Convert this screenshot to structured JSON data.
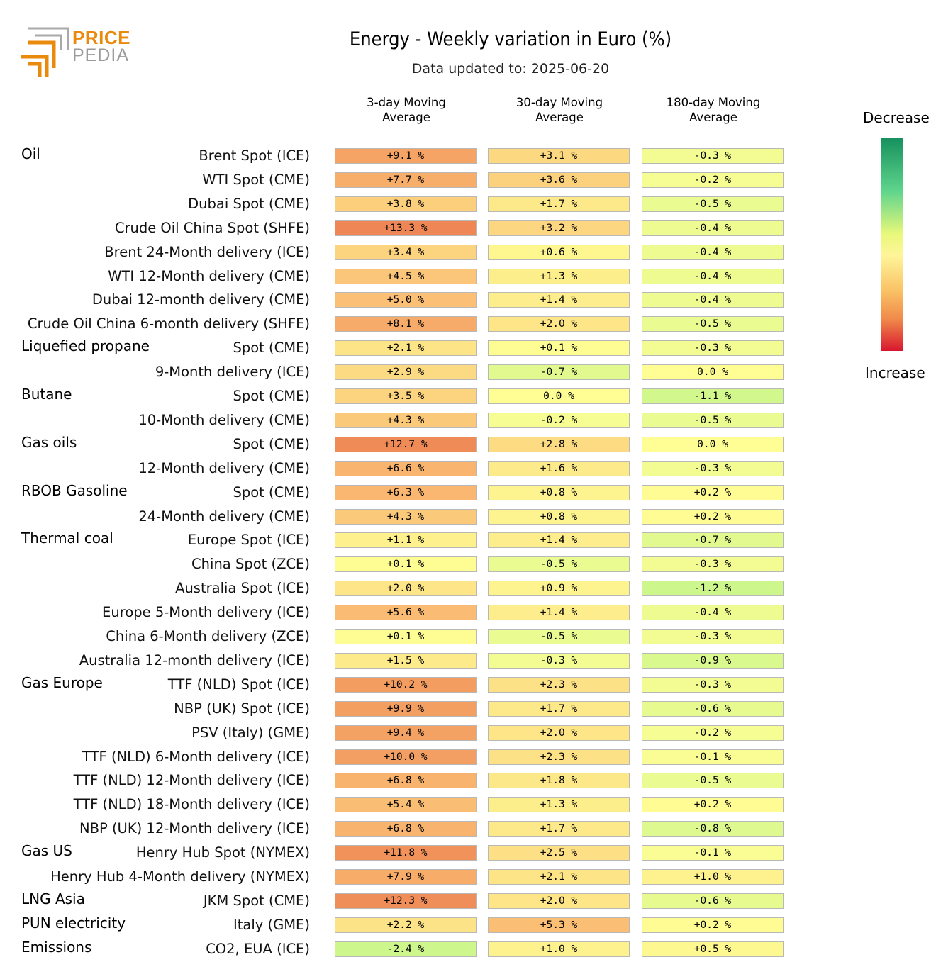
{
  "logo": {
    "line1": "PRICE",
    "line2": "PEDIA"
  },
  "title": "Energy - Weekly variation in Euro (%)",
  "subtitle": "Data updated to: 2025-06-20",
  "legend": {
    "top": "Decrease",
    "bottom": "Increase"
  },
  "chart_data": {
    "type": "table",
    "title": "Energy - Weekly variation in Euro (%)",
    "columns": [
      "3-day Moving Average",
      "30-day Moving Average",
      "180-day Moving Average"
    ],
    "column_lines": [
      [
        "3-day Moving",
        "Average"
      ],
      [
        "30-day Moving",
        "Average"
      ],
      [
        "180-day Moving",
        "Average"
      ]
    ],
    "groups": [
      {
        "name": "Oil",
        "rows": [
          {
            "label": "Brent Spot (ICE)",
            "values": [
              9.1,
              3.1,
              -0.3
            ]
          },
          {
            "label": "WTI Spot (CME)",
            "values": [
              7.7,
              3.6,
              -0.2
            ]
          },
          {
            "label": "Dubai Spot (CME)",
            "values": [
              3.8,
              1.7,
              -0.5
            ]
          },
          {
            "label": "Crude Oil China Spot (SHFE)",
            "values": [
              13.3,
              3.2,
              -0.4
            ]
          },
          {
            "label": "Brent 24-Month delivery (ICE)",
            "values": [
              3.4,
              0.6,
              -0.4
            ]
          },
          {
            "label": "WTI 12-Month delivery (CME)",
            "values": [
              4.5,
              1.3,
              -0.4
            ]
          },
          {
            "label": "Dubai 12-month delivery (CME)",
            "values": [
              5.0,
              1.4,
              -0.4
            ]
          },
          {
            "label": "Crude Oil China 6-month delivery (SHFE)",
            "values": [
              8.1,
              2.0,
              -0.5
            ]
          }
        ]
      },
      {
        "name": "Liquefied propane",
        "rows": [
          {
            "label": "Spot (CME)",
            "values": [
              2.1,
              0.1,
              -0.3
            ]
          },
          {
            "label": "9-Month delivery (ICE)",
            "values": [
              2.9,
              -0.7,
              0.0
            ]
          }
        ]
      },
      {
        "name": "Butane",
        "rows": [
          {
            "label": "Spot (CME)",
            "values": [
              3.5,
              0.0,
              -1.1
            ]
          },
          {
            "label": "10-Month delivery (CME)",
            "values": [
              4.3,
              -0.2,
              -0.5
            ]
          }
        ]
      },
      {
        "name": "Gas oils",
        "rows": [
          {
            "label": "Spot (CME)",
            "values": [
              12.7,
              2.8,
              0.0
            ]
          },
          {
            "label": "12-Month delivery (CME)",
            "values": [
              6.6,
              1.6,
              -0.3
            ]
          }
        ]
      },
      {
        "name": "RBOB Gasoline",
        "rows": [
          {
            "label": "Spot (CME)",
            "values": [
              6.3,
              0.8,
              0.2
            ]
          },
          {
            "label": "24-Month delivery (CME)",
            "values": [
              4.3,
              0.8,
              0.2
            ]
          }
        ]
      },
      {
        "name": "Thermal coal",
        "rows": [
          {
            "label": "Europe Spot (ICE)",
            "values": [
              1.1,
              1.4,
              -0.7
            ]
          },
          {
            "label": "China Spot (ZCE)",
            "values": [
              0.1,
              -0.5,
              -0.3
            ]
          },
          {
            "label": "Australia Spot (ICE)",
            "values": [
              2.0,
              0.9,
              -1.2
            ]
          },
          {
            "label": "Europe 5-Month delivery (ICE)",
            "values": [
              5.6,
              1.4,
              -0.4
            ]
          },
          {
            "label": "China 6-Month delivery (ZCE)",
            "values": [
              0.1,
              -0.5,
              -0.3
            ]
          },
          {
            "label": "Australia 12-month delivery (ICE)",
            "values": [
              1.5,
              -0.3,
              -0.9
            ]
          }
        ]
      },
      {
        "name": "Gas Europe",
        "rows": [
          {
            "label": "TTF (NLD) Spot (ICE)",
            "values": [
              10.2,
              2.3,
              -0.3
            ]
          },
          {
            "label": "NBP (UK) Spot (ICE)",
            "values": [
              9.9,
              1.7,
              -0.6
            ]
          },
          {
            "label": "PSV (Italy) (GME)",
            "values": [
              9.4,
              2.0,
              -0.2
            ]
          },
          {
            "label": "TTF (NLD) 6-Month delivery (ICE)",
            "values": [
              10.0,
              2.3,
              -0.1
            ]
          },
          {
            "label": "TTF (NLD) 12-Month delivery (ICE)",
            "values": [
              6.8,
              1.8,
              -0.5
            ]
          },
          {
            "label": "TTF (NLD) 18-Month delivery (ICE)",
            "values": [
              5.4,
              1.3,
              0.2
            ]
          },
          {
            "label": "NBP (UK) 12-Month delivery (ICE)",
            "values": [
              6.8,
              1.7,
              -0.8
            ]
          }
        ]
      },
      {
        "name": "Gas US",
        "rows": [
          {
            "label": "Henry Hub Spot (NYMEX)",
            "values": [
              11.8,
              2.5,
              -0.1
            ]
          },
          {
            "label": "Henry Hub 4-Month delivery (NYMEX)",
            "values": [
              7.9,
              2.1,
              1.0
            ]
          }
        ]
      },
      {
        "name": "LNG Asia",
        "rows": [
          {
            "label": "JKM Spot (CME)",
            "values": [
              12.3,
              2.0,
              -0.6
            ]
          }
        ]
      },
      {
        "name": "PUN electricity",
        "rows": [
          {
            "label": "Italy (GME)",
            "values": [
              2.2,
              5.3,
              0.2
            ]
          }
        ]
      },
      {
        "name": "Emissions",
        "rows": [
          {
            "label": "CO2, EUA (ICE)",
            "values": [
              -2.4,
              1.0,
              0.5
            ]
          }
        ]
      }
    ]
  }
}
